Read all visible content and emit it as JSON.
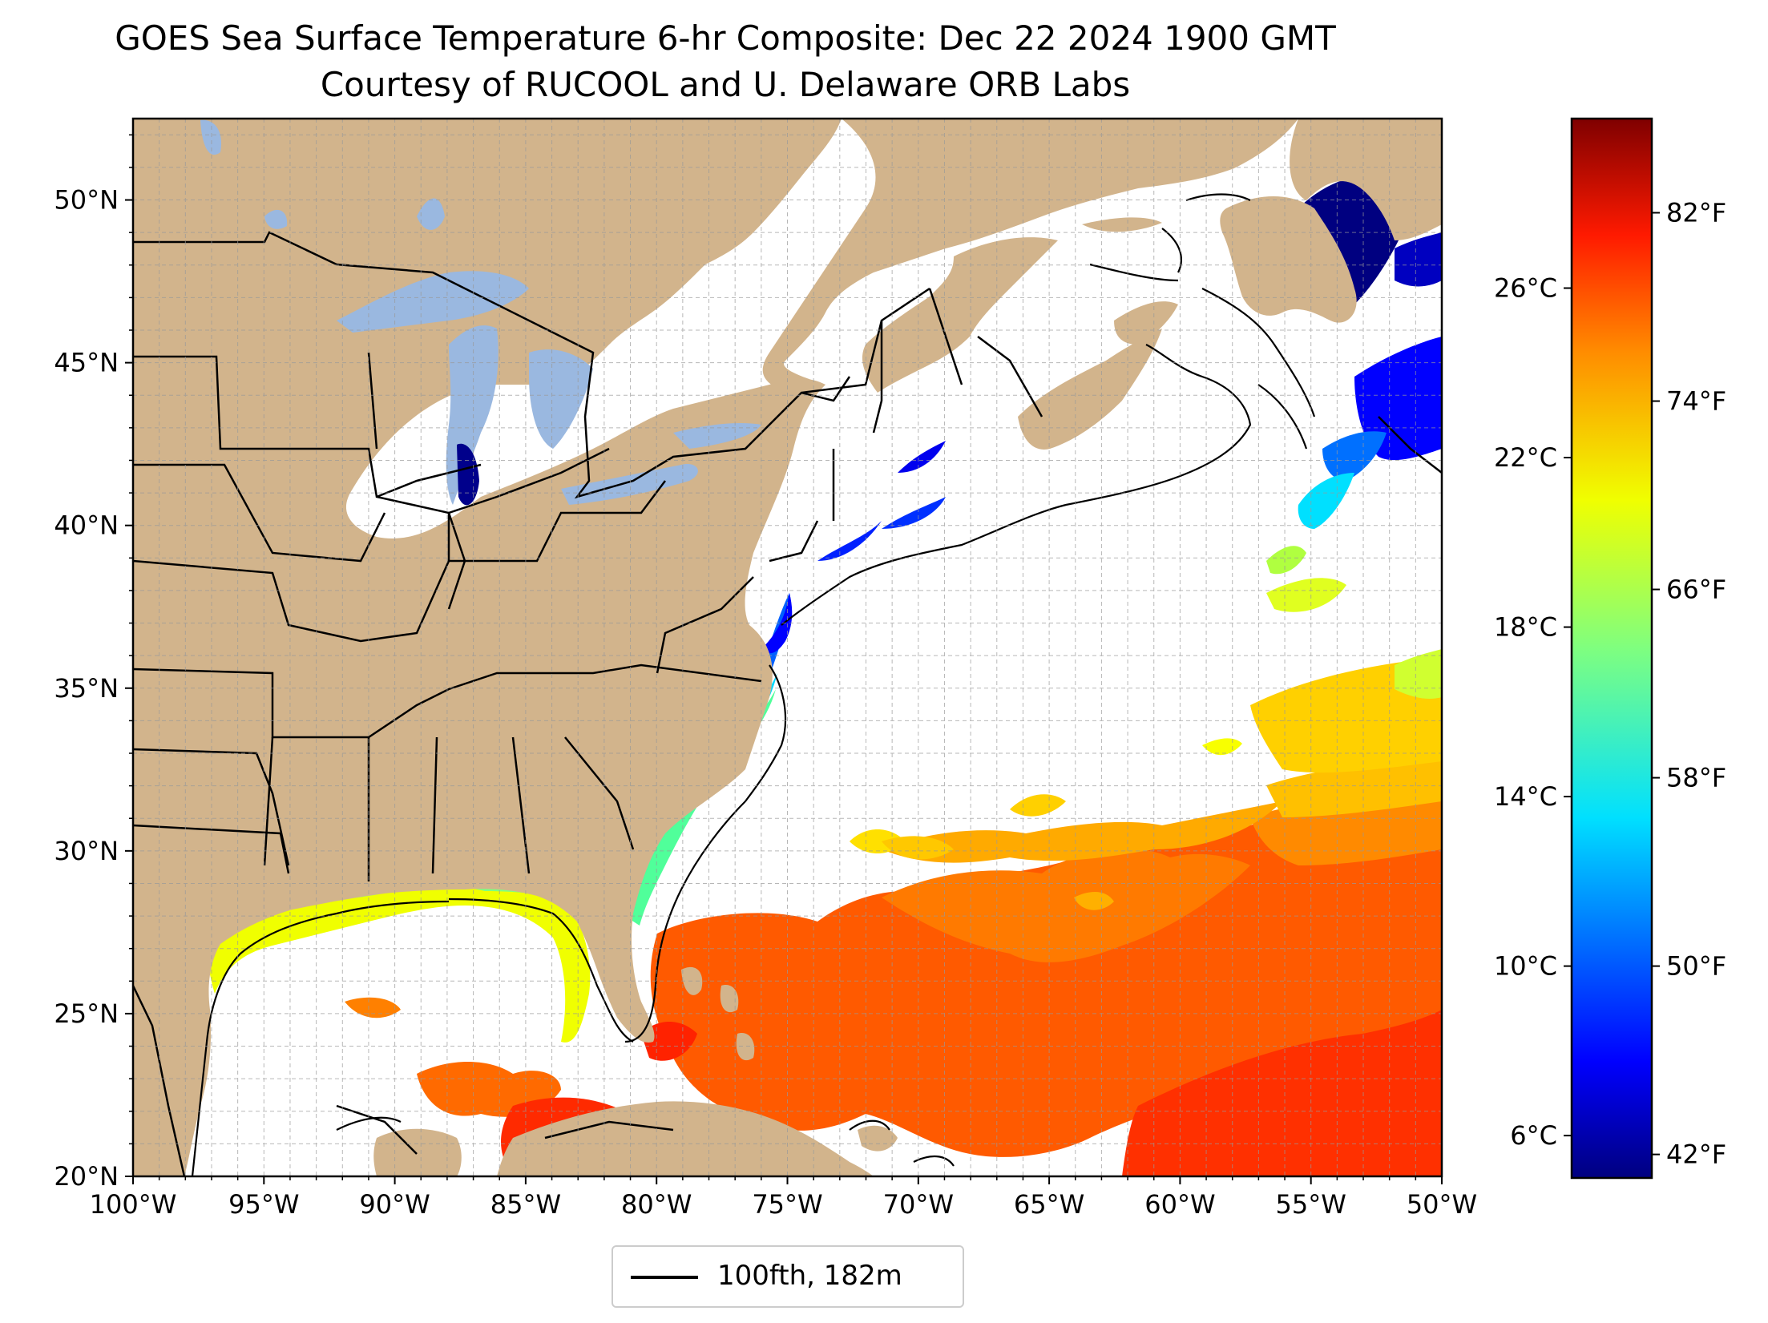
{
  "title": "GOES Sea Surface Temperature 6-hr Composite: Dec 22 2024 1900 GMT",
  "subtitle": "Courtesy of RUCOOL and U. Delaware ORB Labs",
  "map": {
    "lon_range": [
      -100,
      -50
    ],
    "lat_range": [
      20,
      52.5
    ],
    "lat_ticks": [
      {
        "value": 50,
        "label": "50°N"
      },
      {
        "value": 45,
        "label": "45°N"
      },
      {
        "value": 40,
        "label": "40°N"
      },
      {
        "value": 35,
        "label": "35°N"
      },
      {
        "value": 30,
        "label": "30°N"
      },
      {
        "value": 25,
        "label": "25°N"
      },
      {
        "value": 20,
        "label": "20°N"
      }
    ],
    "lon_ticks": [
      {
        "value": -100,
        "label": "100°W"
      },
      {
        "value": -95,
        "label": "95°W"
      },
      {
        "value": -90,
        "label": "90°W"
      },
      {
        "value": -85,
        "label": "85°W"
      },
      {
        "value": -80,
        "label": "80°W"
      },
      {
        "value": -75,
        "label": "75°W"
      },
      {
        "value": -70,
        "label": "70°W"
      },
      {
        "value": -65,
        "label": "65°W"
      },
      {
        "value": -60,
        "label": "60°W"
      },
      {
        "value": -55,
        "label": "55°W"
      },
      {
        "value": -50,
        "label": "50°W"
      }
    ],
    "grid": true,
    "land_color": "#d2b48c",
    "lake_color": "#9ab8e0",
    "ocean_color": "#ffffff"
  },
  "colorbar": {
    "colormap": "jet",
    "range_c": [
      5,
      30
    ],
    "celsius_ticks": [
      {
        "value": 26,
        "label": "26°C"
      },
      {
        "value": 22,
        "label": "22°C"
      },
      {
        "value": 18,
        "label": "18°C"
      },
      {
        "value": 14,
        "label": "14°C"
      },
      {
        "value": 10,
        "label": "10°C"
      },
      {
        "value": 6,
        "label": "6°C"
      }
    ],
    "fahrenheit_ticks": [
      {
        "value": 82,
        "label": "82°F"
      },
      {
        "value": 74,
        "label": "74°F"
      },
      {
        "value": 66,
        "label": "66°F"
      },
      {
        "value": 58,
        "label": "58°F"
      },
      {
        "value": 50,
        "label": "50°F"
      },
      {
        "value": 42,
        "label": "42°F"
      }
    ]
  },
  "legend": {
    "entries": [
      {
        "label": "100fth, 182m",
        "color": "#000000"
      }
    ]
  }
}
